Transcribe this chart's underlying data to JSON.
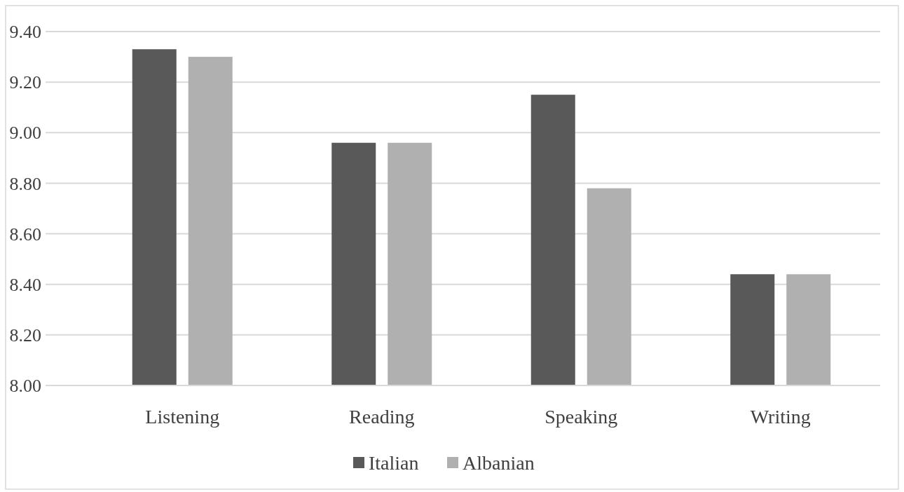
{
  "chart_data": {
    "type": "bar",
    "categories": [
      "Listening",
      "Reading",
      "Speaking",
      "Writing"
    ],
    "series": [
      {
        "name": "Italian",
        "color": "#595959",
        "values": [
          9.33,
          8.96,
          9.15,
          8.44
        ]
      },
      {
        "name": "Albanian",
        "color": "#b0b0b0",
        "values": [
          9.3,
          8.96,
          8.78,
          8.44
        ]
      }
    ],
    "ylim": [
      8.0,
      9.4
    ],
    "yticks": [
      {
        "value": 8.0,
        "label": "8.00"
      },
      {
        "value": 8.2,
        "label": "8.20"
      },
      {
        "value": 8.4,
        "label": "8.40"
      },
      {
        "value": 8.6,
        "label": "8.60"
      },
      {
        "value": 8.8,
        "label": "8.80"
      },
      {
        "value": 9.0,
        "label": "9.00"
      },
      {
        "value": 9.2,
        "label": "9.20"
      },
      {
        "value": 9.4,
        "label": "9.40"
      }
    ],
    "grid": "y",
    "legend": "bottom"
  }
}
